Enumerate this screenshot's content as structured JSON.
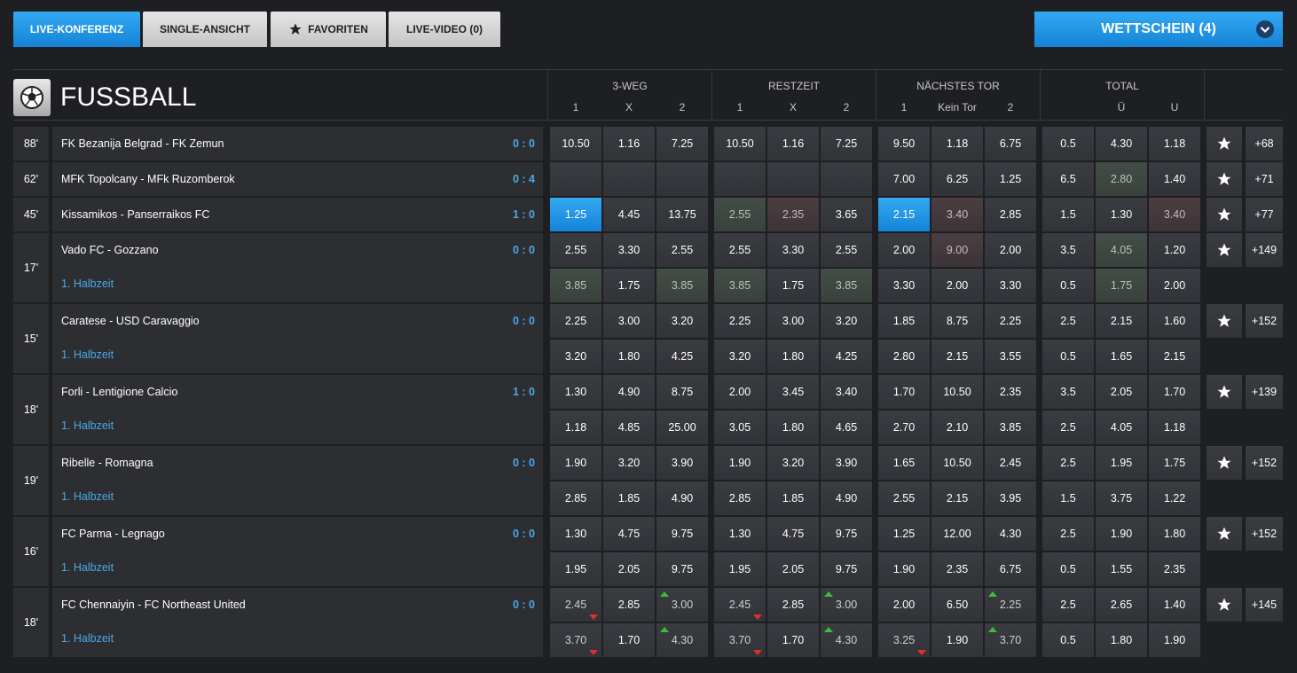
{
  "tabs": [
    "LIVE-KONFERENZ",
    "SINGLE-ANSICHT",
    "FAVORITEN",
    "LIVE-VIDEO (0)"
  ],
  "betslip": "WETTSCHEIN (4)",
  "section": {
    "title": "FUSSBALL"
  },
  "columns": [
    {
      "title": "3-WEG",
      "labels": [
        "1",
        "X",
        "2"
      ]
    },
    {
      "title": "RESTZEIT",
      "labels": [
        "1",
        "X",
        "2"
      ]
    },
    {
      "title": "NÄCHSTES TOR",
      "labels": [
        "1",
        "Kein Tor",
        "2"
      ]
    },
    {
      "title": "TOTAL",
      "labels": [
        "Ü",
        "U"
      ]
    }
  ],
  "matches": [
    {
      "minute": "88'",
      "name": "FK Bezanija Belgrad - FK Zemun",
      "score": "0 : 0",
      "more": "+68",
      "rows": [
        [
          [
            "10.50",
            "1.16",
            "7.25"
          ],
          [
            "10.50",
            "1.16",
            "7.25"
          ],
          [
            "9.50",
            "1.18",
            "6.75"
          ],
          [
            "0.5",
            "4.30",
            "1.18"
          ]
        ]
      ]
    },
    {
      "minute": "62'",
      "name": "MFK Topolcany - MFk Ruzomberok",
      "score": "0 : 4",
      "more": "+71",
      "rows": [
        [
          null,
          null,
          [
            "7.00",
            "6.25",
            "1.25"
          ],
          [
            "6.5",
            "2.80",
            "1.40"
          ]
        ]
      ]
    },
    {
      "minute": "45'",
      "name": "Kissamikos - Panserraikos FC",
      "score": "1 : 0",
      "more": "+77",
      "rows": [
        [
          [
            "1.25",
            "4.45",
            "13.75"
          ],
          [
            "2.55",
            "2.35",
            "3.65"
          ],
          [
            "2.15",
            "3.40",
            "2.85"
          ],
          [
            "1.5",
            "1.30",
            "3.40"
          ]
        ]
      ]
    },
    {
      "minute": "17'",
      "name": "Vado FC - Gozzano",
      "score": "0 : 0",
      "period": "1. Halbzeit",
      "more": "+149",
      "rows": [
        [
          [
            "2.55",
            "3.30",
            "2.55"
          ],
          [
            "2.55",
            "3.30",
            "2.55"
          ],
          [
            "2.00",
            "9.00",
            "2.00"
          ],
          [
            "3.5",
            "4.05",
            "1.20"
          ]
        ],
        [
          [
            "3.85",
            "1.75",
            "3.85"
          ],
          [
            "3.85",
            "1.75",
            "3.85"
          ],
          [
            "3.30",
            "2.00",
            "3.30"
          ],
          [
            "0.5",
            "1.75",
            "2.00"
          ]
        ]
      ]
    },
    {
      "minute": "15'",
      "name": "Caratese - USD Caravaggio",
      "score": "0 : 0",
      "period": "1. Halbzeit",
      "more": "+152",
      "rows": [
        [
          [
            "2.25",
            "3.00",
            "3.20"
          ],
          [
            "2.25",
            "3.00",
            "3.20"
          ],
          [
            "1.85",
            "8.75",
            "2.25"
          ],
          [
            "2.5",
            "2.15",
            "1.60"
          ]
        ],
        [
          [
            "3.20",
            "1.80",
            "4.25"
          ],
          [
            "3.20",
            "1.80",
            "4.25"
          ],
          [
            "2.80",
            "2.15",
            "3.55"
          ],
          [
            "0.5",
            "1.65",
            "2.15"
          ]
        ]
      ]
    },
    {
      "minute": "18'",
      "name": "Forli - Lentigione Calcio",
      "score": "1 : 0",
      "period": "1. Halbzeit",
      "more": "+139",
      "rows": [
        [
          [
            "1.30",
            "4.90",
            "8.75"
          ],
          [
            "2.00",
            "3.45",
            "3.40"
          ],
          [
            "1.70",
            "10.50",
            "2.35"
          ],
          [
            "3.5",
            "2.05",
            "1.70"
          ]
        ],
        [
          [
            "1.18",
            "4.85",
            "25.00"
          ],
          [
            "3.05",
            "1.80",
            "4.65"
          ],
          [
            "2.70",
            "2.10",
            "3.85"
          ],
          [
            "2.5",
            "4.05",
            "1.18"
          ]
        ]
      ]
    },
    {
      "minute": "19'",
      "name": "Ribelle - Romagna",
      "score": "0 : 0",
      "period": "1. Halbzeit",
      "more": "+152",
      "rows": [
        [
          [
            "1.90",
            "3.20",
            "3.90"
          ],
          [
            "1.90",
            "3.20",
            "3.90"
          ],
          [
            "1.65",
            "10.50",
            "2.45"
          ],
          [
            "2.5",
            "1.95",
            "1.75"
          ]
        ],
        [
          [
            "2.85",
            "1.85",
            "4.90"
          ],
          [
            "2.85",
            "1.85",
            "4.90"
          ],
          [
            "2.55",
            "2.15",
            "3.95"
          ],
          [
            "1.5",
            "3.75",
            "1.22"
          ]
        ]
      ]
    },
    {
      "minute": "16'",
      "name": "FC Parma - Legnago",
      "score": "0 : 0",
      "period": "1. Halbzeit",
      "more": "+152",
      "rows": [
        [
          [
            "1.30",
            "4.75",
            "9.75"
          ],
          [
            "1.30",
            "4.75",
            "9.75"
          ],
          [
            "1.25",
            "12.00",
            "4.30"
          ],
          [
            "2.5",
            "1.90",
            "1.80"
          ]
        ],
        [
          [
            "1.95",
            "2.05",
            "9.75"
          ],
          [
            "1.95",
            "2.05",
            "9.75"
          ],
          [
            "1.90",
            "2.35",
            "6.75"
          ],
          [
            "0.5",
            "1.55",
            "2.35"
          ]
        ]
      ]
    },
    {
      "minute": "18'",
      "name": "FC Chennaiyin - FC Northeast United",
      "score": "0 : 0",
      "period": "1. Halbzeit",
      "more": "+145",
      "rows": [
        [
          [
            "2.45",
            "2.85",
            "3.00"
          ],
          [
            "2.45",
            "2.85",
            "3.00"
          ],
          [
            "2.00",
            "6.50",
            "2.25"
          ],
          [
            "2.5",
            "2.65",
            "1.40"
          ]
        ],
        [
          [
            "3.70",
            "1.70",
            "4.30"
          ],
          [
            "3.70",
            "1.70",
            "4.30"
          ],
          [
            "3.25",
            "1.90",
            "3.70"
          ],
          [
            "0.5",
            "1.80",
            "1.90"
          ]
        ]
      ]
    }
  ]
}
